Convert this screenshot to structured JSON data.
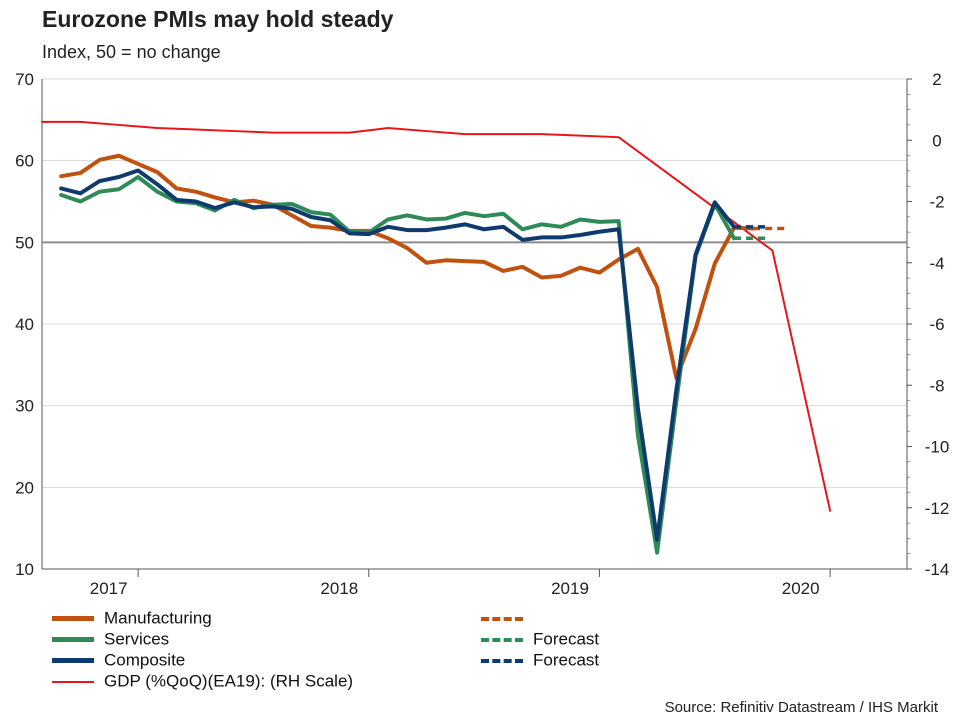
{
  "title": "Eurozone PMIs may hold steady",
  "subtitle": "Index, 50 = no change",
  "source": "Source: Refinitiv Datastream / IHS Markit",
  "colors": {
    "manufacturing": "#C0510F",
    "services": "#2E8B57",
    "composite": "#0E3A6E",
    "gdp": "#E8161B",
    "reference": "#8c8c8c",
    "grid": "#d9d9d9",
    "axis": "#555555"
  },
  "legend": {
    "manufacturing": "Manufacturing",
    "manufacturing_forecast": "",
    "services": "Services",
    "services_forecast": "Forecast",
    "composite": "Composite",
    "composite_forecast": "Forecast",
    "gdp": "GDP (%QoQ)(EA19): (RH Scale)"
  },
  "chart_data": {
    "type": "line",
    "title": "Eurozone PMIs may hold steady",
    "subtitle": "Index, 50 = no change",
    "x_label": "",
    "year_labels": [
      {
        "label": "2017",
        "month_index": 3
      },
      {
        "label": "2018",
        "month_index": 15
      },
      {
        "label": "2019",
        "month_index": 27
      },
      {
        "label": "2020",
        "month_index": 39
      }
    ],
    "x_range_months": [
      0,
      45
    ],
    "year_boundaries": [
      5,
      17,
      29,
      41
    ],
    "y_left": {
      "min": 10,
      "max": 70,
      "ticks": [
        10,
        20,
        30,
        40,
        50,
        60,
        70
      ]
    },
    "y_right": {
      "min": -14,
      "max": 2,
      "ticks": [
        -14,
        -12,
        -10,
        -8,
        -6,
        -4,
        -2,
        0,
        2
      ]
    },
    "reference_line": 50,
    "series": [
      {
        "name": "Manufacturing",
        "key": "manufacturing",
        "axis": "left",
        "values": [
          58.1,
          58.5,
          60.1,
          60.6,
          59.6,
          58.6,
          56.6,
          56.2,
          55.5,
          54.9,
          55.1,
          54.6,
          53.3,
          52.0,
          51.8,
          51.4,
          51.4,
          50.5,
          49.3,
          47.5,
          47.8,
          47.7,
          47.6,
          46.5,
          47.0,
          45.7,
          45.9,
          46.9,
          46.3,
          47.9,
          49.2,
          44.5,
          33.4,
          39.4,
          47.4,
          51.8,
          51.7
        ],
        "forecast_values": [
          51.7,
          51.7,
          51.7
        ]
      },
      {
        "name": "Services",
        "key": "services",
        "axis": "left",
        "values": [
          55.8,
          55.0,
          56.2,
          56.5,
          58.0,
          56.2,
          55.0,
          54.8,
          53.9,
          55.2,
          54.2,
          54.6,
          54.7,
          53.7,
          53.4,
          51.3,
          51.2,
          52.8,
          53.3,
          52.8,
          52.9,
          53.6,
          53.2,
          53.5,
          51.6,
          52.2,
          51.9,
          52.8,
          52.5,
          52.6,
          26.4,
          12.0,
          30.5,
          48.3,
          54.7,
          50.5
        ],
        "forecast_values": [
          50.5,
          50.5,
          50.5
        ]
      },
      {
        "name": "Composite",
        "key": "composite",
        "axis": "left",
        "values": [
          56.6,
          56.0,
          57.5,
          58.0,
          58.8,
          57.1,
          55.2,
          55.0,
          54.2,
          54.9,
          54.3,
          54.4,
          54.1,
          53.1,
          52.7,
          51.1,
          51.0,
          51.9,
          51.5,
          51.5,
          51.8,
          52.2,
          51.6,
          51.9,
          50.3,
          50.6,
          50.6,
          50.9,
          51.3,
          51.6,
          29.7,
          13.6,
          31.9,
          48.5,
          54.9,
          51.9
        ],
        "forecast_values": [
          51.9,
          51.9,
          51.9
        ]
      },
      {
        "name": "GDP (%QoQ)(EA19): (RH Scale)",
        "key": "gdp",
        "axis": "right",
        "values": [
          0.6,
          0.6,
          0.5,
          0.4,
          0.35,
          0.3,
          0.25,
          0.25,
          0.25,
          0.4,
          0.3,
          0.2,
          0.2,
          0.2,
          0.15,
          0.1,
          -3.6,
          -12.1
        ]
      }
    ]
  }
}
